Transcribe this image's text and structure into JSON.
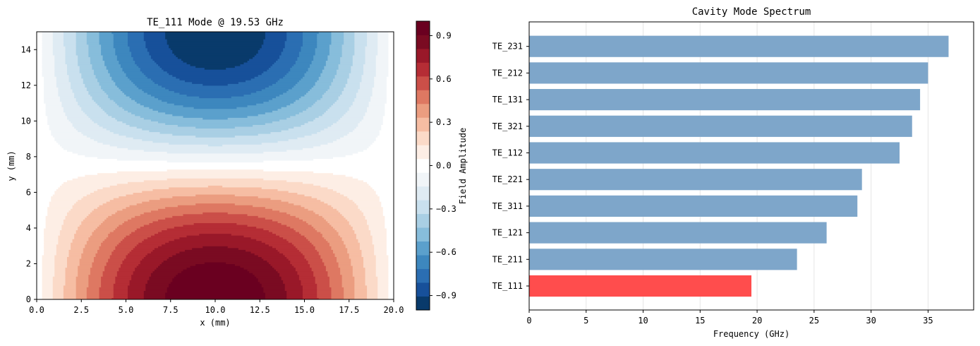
{
  "chart_data": [
    {
      "type": "heatmap",
      "title": "TE_111 Mode @ 19.53 GHz",
      "xlabel": "x (mm)",
      "ylabel": "y (mm)",
      "xlim": [
        0,
        20
      ],
      "ylim": [
        0,
        15
      ],
      "x_ticks": [
        "0.0",
        "2.5",
        "5.0",
        "7.5",
        "10.0",
        "12.5",
        "15.0",
        "17.5",
        "20.0"
      ],
      "y_ticks": [
        "0",
        "2",
        "4",
        "6",
        "8",
        "10",
        "12",
        "14"
      ],
      "field": "cos(pi*y/15)*sin(pi*x/20)",
      "levels": 21,
      "colormap": "RdBu_r",
      "colorbar": {
        "label": "Field Amplitude",
        "range": [
          -1,
          1
        ],
        "ticks": [
          "−0.9",
          "−0.6",
          "−0.3",
          "0.0",
          "0.3",
          "0.6",
          "0.9"
        ],
        "colors": [
          "#093a6b",
          "#17509a",
          "#2b6eb2",
          "#3d87be",
          "#5ba0cc",
          "#87bddb",
          "#a9cfe4",
          "#c9e0ee",
          "#dfebf3",
          "#f1f5f8",
          "#ffffff",
          "#fdeee5",
          "#fbdac8",
          "#f6bda3",
          "#eb9d80",
          "#de7862",
          "#cb4f48",
          "#b52d35",
          "#991829",
          "#7a0b22",
          "#6a0020"
        ]
      }
    },
    {
      "type": "bar",
      "orientation": "horizontal",
      "title": "Cavity Mode Spectrum",
      "xlabel": "Frequency (GHz)",
      "xlim": [
        0,
        39
      ],
      "x_ticks": [
        "0",
        "5",
        "10",
        "15",
        "20",
        "25",
        "30",
        "35"
      ],
      "categories": [
        "TE_111",
        "TE_211",
        "TE_121",
        "TE_311",
        "TE_221",
        "TE_112",
        "TE_321",
        "TE_131",
        "TE_212",
        "TE_231"
      ],
      "values": [
        19.5,
        23.5,
        26.1,
        28.8,
        29.2,
        32.5,
        33.6,
        34.3,
        35.0,
        36.8
      ],
      "colors": {
        "highlight": "#ff4d4d",
        "default": "#7ea6ca"
      },
      "highlight_index": 0
    }
  ]
}
